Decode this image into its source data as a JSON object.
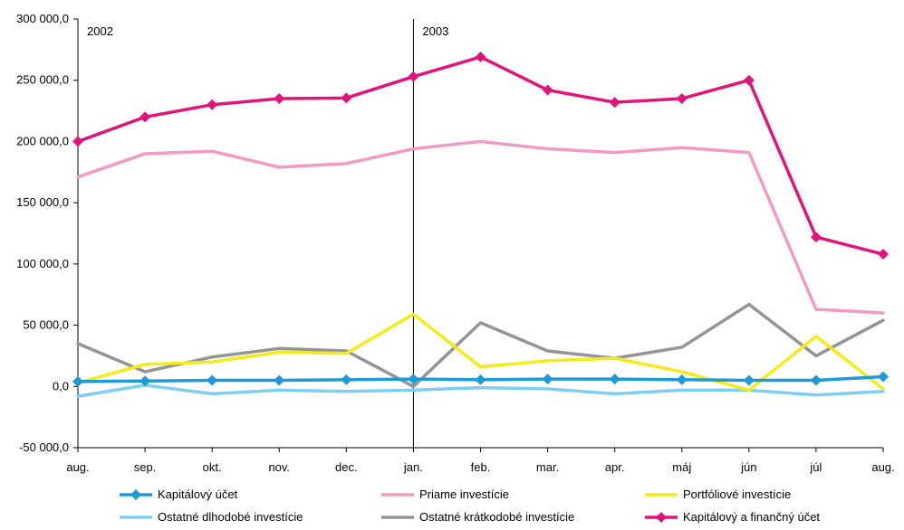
{
  "chart_data": {
    "type": "line",
    "title": "",
    "xlabel": "",
    "ylabel": "",
    "ylim": [
      -50000,
      300000
    ],
    "ytick_values": [
      -50000,
      0,
      50000,
      100000,
      150000,
      200000,
      250000,
      300000
    ],
    "ytick_labels": [
      "-50 000,0",
      "0,0",
      "50 000,0",
      "100 000,0",
      "150 000,0",
      "200 000,0",
      "250 000,0",
      "300 000,0"
    ],
    "categories": [
      "aug.",
      "sep.",
      "okt.",
      "nov.",
      "dec.",
      "jan.",
      "feb.",
      "mar.",
      "apr.",
      "máj",
      "jún",
      "júl",
      "aug."
    ],
    "year_labels": [
      {
        "text": "2002",
        "category_index": 0
      },
      {
        "text": "2003",
        "category_index": 5
      }
    ],
    "legend_position": "bottom",
    "grid": false,
    "series": [
      {
        "name": "Kapitálový účet",
        "color": "#1f9ad6",
        "marker": "diamond",
        "values": [
          4000,
          4500,
          5000,
          5000,
          5500,
          6000,
          5500,
          6000,
          6000,
          5500,
          5000,
          5000,
          8000
        ]
      },
      {
        "name": "Priame investície",
        "color": "#f29ac2",
        "marker": "none",
        "values": [
          171000,
          190000,
          192000,
          179000,
          182000,
          194000,
          200000,
          194000,
          191000,
          195000,
          191000,
          63000,
          60000
        ]
      },
      {
        "name": "Portfóliové investície",
        "color": "#f5eb1a",
        "marker": "none",
        "values": [
          3000,
          18000,
          20000,
          28000,
          27000,
          59000,
          16000,
          21000,
          23000,
          12000,
          -3000,
          41000,
          -2000
        ]
      },
      {
        "name": "Ostatné dlhodobé investície",
        "color": "#7dcff2",
        "marker": "none",
        "values": [
          -8000,
          1000,
          -6000,
          -3000,
          -4000,
          -3000,
          -1000,
          -2000,
          -6000,
          -3000,
          -3000,
          -7000,
          -4000
        ]
      },
      {
        "name": "Ostatné krátkodobé investície",
        "color": "#949494",
        "marker": "none",
        "values": [
          35000,
          12000,
          24000,
          31000,
          29000,
          0,
          52000,
          29000,
          23000,
          32000,
          67000,
          25000,
          54000
        ]
      },
      {
        "name": "Kapitálový a finančný účet",
        "color": "#e0147a",
        "marker": "diamond",
        "values": [
          200000,
          220000,
          230000,
          235000,
          235500,
          253000,
          269000,
          242000,
          232000,
          235000,
          250000,
          122000,
          108000
        ]
      }
    ]
  }
}
